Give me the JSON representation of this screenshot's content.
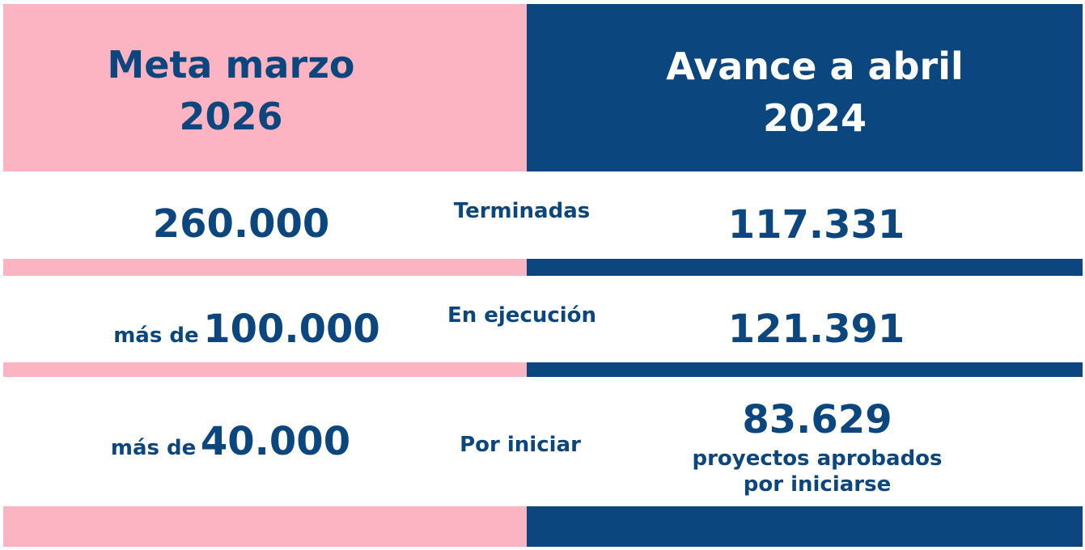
{
  "colors": {
    "pink": "#fdb4c2",
    "navy": "#0c467e",
    "white": "#ffffff"
  },
  "header": {
    "left_line1": "Meta marzo",
    "left_line2": "2026",
    "right_line1": "Avance a abril",
    "right_line2": "2024"
  },
  "rows": [
    {
      "label": "Terminadas",
      "goal_prefix": "",
      "goal_value": "260.000",
      "progress": "117.331"
    },
    {
      "label": "En ejecución",
      "goal_prefix": "más de",
      "goal_value": "100.000",
      "progress": "121.391"
    },
    {
      "label": "Por iniciar",
      "goal_prefix": "más de",
      "goal_value": "40.000",
      "progress": "83.629",
      "progress_note_line1": "proyectos aprobados",
      "progress_note_line2": "por iniciarse"
    }
  ]
}
